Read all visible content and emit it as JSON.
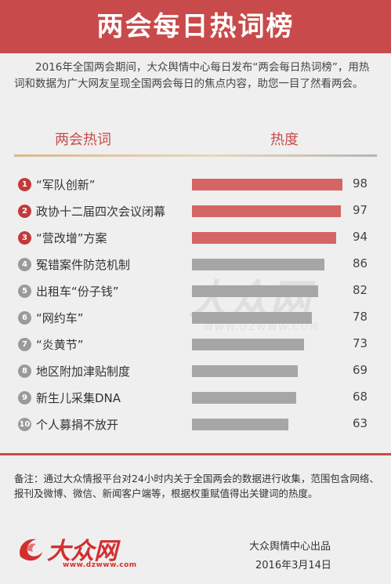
{
  "header": {
    "title": "两会每日热词榜"
  },
  "intro": "2016年全国两会期间，大众舆情中心每日发布“两会每日热词榜”，用热词和数据为广大网友呈现全国两会每日的焦点内容，助您一目了然看两会。",
  "columns": {
    "term": "两会热词",
    "heat": "热度"
  },
  "accent_color": "#c94a4a",
  "hot_bar_color": "#d56565",
  "norm_bar_color": "#a6a6a6",
  "rankings": [
    {
      "rank": "1",
      "term": "“军队创新”",
      "heat": "98"
    },
    {
      "rank": "2",
      "term": "政协十二届四次会议闭幕",
      "heat": "97"
    },
    {
      "rank": "3",
      "term": "“营改增”方案",
      "heat": "94"
    },
    {
      "rank": "4",
      "term": "冤错案件防范机制",
      "heat": "86"
    },
    {
      "rank": "5",
      "term": "出租车“份子钱”",
      "heat": "82"
    },
    {
      "rank": "6",
      "term": "“网约车”",
      "heat": "78"
    },
    {
      "rank": "7",
      "term": "“炎黄节”",
      "heat": "73"
    },
    {
      "rank": "8",
      "term": "地区附加津贴制度",
      "heat": "69"
    },
    {
      "rank": "9",
      "term": "新生儿采集DNA",
      "heat": "68"
    },
    {
      "rank": "10",
      "term": "个人募捐不放开",
      "heat": "63"
    }
  ],
  "note": "备注：通过大众情报平台对24小时内关于全国两会的数据进行收集，范围包含网络、报刊及微博、微信、新闻客户端等，根据权重赋值得出关键词的热度。",
  "logo": {
    "text": "大众网",
    "url": "www.dzwww.com"
  },
  "watermark": {
    "text": "大众网",
    "url": "WWW.DZWWW.COM"
  },
  "footer": {
    "credit": "大众舆情中心出品",
    "date": "2016年3月14日"
  }
}
